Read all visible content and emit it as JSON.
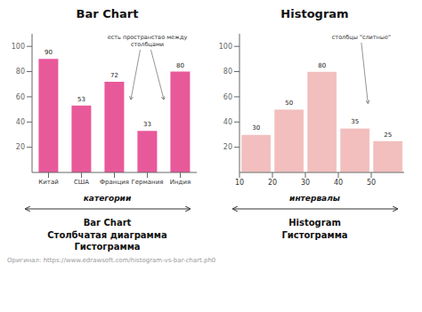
{
  "chart_data": [
    {
      "type": "bar",
      "title": "Bar Chart",
      "categories": [
        "Китай",
        "США",
        "Франция",
        "Германия",
        "Индия"
      ],
      "values": [
        90,
        53,
        72,
        33,
        80
      ],
      "color": "#e8599a",
      "ylim": [
        0,
        110
      ],
      "yticks": [
        20,
        40,
        60,
        80,
        100
      ],
      "data_labels": true,
      "xlabel": "категории",
      "annotations": [
        "есть пространство между\nстолбцами"
      ],
      "caption": "Bar Chart\nСтолбчатая диаграмма\nГистограмма"
    },
    {
      "type": "histogram",
      "title": "Histogram",
      "bins": [
        10,
        20,
        30,
        40,
        50,
        60
      ],
      "values": [
        30,
        50,
        80,
        35,
        25
      ],
      "color": "#f2bebe",
      "xlim": [
        10,
        60
      ],
      "xticks": [
        10,
        20,
        30,
        40,
        50
      ],
      "ylim": [
        0,
        110
      ],
      "yticks": [
        20,
        40,
        60,
        80,
        100
      ],
      "data_labels": true,
      "xlabel": "интервалы",
      "annotations": [
        "столбцы \"слитные\""
      ],
      "caption": "Histogram\nГистограмма",
      "source": "Oригинал: https://www.edrawsoft.com/histogram-vs-bar-chart.ph0"
    }
  ]
}
